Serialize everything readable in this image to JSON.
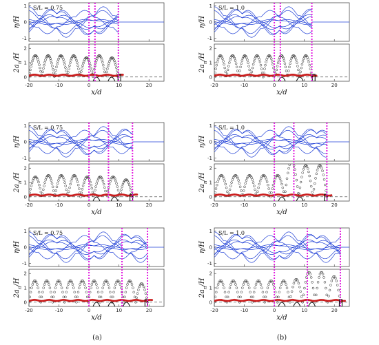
{
  "figure": {
    "captions": [
      "(a)",
      "(b)"
    ],
    "x_axis_label": "x/d",
    "top_y_label": "η/H",
    "bottom_y_label": "2a",
    "bottom_y_label_sub": "n",
    "bottom_y_label_tail": "/H"
  },
  "chart_data": [
    {
      "type": "line",
      "column": "a",
      "row": 1,
      "ratio_label": "S/L = 0.75",
      "x_ticks": [
        -20,
        -10,
        0,
        10,
        20
      ],
      "xlim": [
        -20,
        25
      ],
      "top": {
        "ylim": [
          -1.2,
          1.2
        ],
        "y_ticks": [
          1,
          0,
          -1
        ],
        "wave_end_x": 9.8
      },
      "bottom": {
        "ylim": [
          -0.3,
          2.3
        ],
        "y_ticks": [
          2,
          1,
          0
        ],
        "envelope_black": [
          1.5,
          1.5,
          1.5,
          1.5,
          1.35,
          1.5,
          1.35
        ],
        "envelope_red": 0.12,
        "reference_y": 0
      },
      "dashed_lines_x": [
        0,
        2.0,
        9.8
      ],
      "structures_x": [
        0,
        5,
        10
      ]
    },
    {
      "type": "line",
      "column": "b",
      "row": 1,
      "ratio_label": "S/L = 1.0",
      "x_ticks": [
        -20,
        -10,
        0,
        10,
        20
      ],
      "xlim": [
        -20,
        25
      ],
      "top": {
        "ylim": [
          -1.2,
          1.2
        ],
        "y_ticks": [
          1,
          0,
          -1
        ],
        "wave_end_x": 12.5
      },
      "bottom": {
        "ylim": [
          -0.3,
          2.3
        ],
        "y_ticks": [
          2,
          1,
          0
        ],
        "envelope_black": [
          1.5,
          1.5,
          1.5,
          1.5,
          1.5,
          1.5,
          1.5,
          1.5
        ],
        "envelope_red": 0.12,
        "reference_y": 0
      },
      "dashed_lines_x": [
        0,
        2.0,
        12.5
      ],
      "structures_x": [
        0,
        6,
        13
      ]
    },
    {
      "type": "line",
      "column": "a",
      "row": 2,
      "ratio_label": "S/L = 0.75",
      "x_ticks": [
        -20,
        -10,
        0,
        10,
        20
      ],
      "xlim": [
        -20,
        25
      ],
      "top": {
        "ylim": [
          -1.2,
          1.2
        ],
        "y_ticks": [
          1,
          0,
          -1
        ],
        "wave_end_x": 14.5
      },
      "bottom": {
        "ylim": [
          -0.3,
          2.3
        ],
        "y_ticks": [
          2,
          1,
          0
        ],
        "envelope_black": [
          1.4,
          1.5,
          1.5,
          1.5,
          1.4,
          1.4,
          1.4,
          1.2
        ],
        "envelope_red": 0.12,
        "reference_y": 0
      },
      "dashed_lines_x": [
        0,
        6.5,
        14.5
      ],
      "structures_x": [
        0,
        6,
        14
      ]
    },
    {
      "type": "line",
      "column": "b",
      "row": 2,
      "ratio_label": "S/L = 1.0",
      "x_ticks": [
        -20,
        -10,
        0,
        10,
        20
      ],
      "xlim": [
        -20,
        25
      ],
      "top": {
        "ylim": [
          -1.2,
          1.2
        ],
        "y_ticks": [
          1,
          0,
          -1
        ],
        "wave_end_x": 17.5
      },
      "bottom": {
        "ylim": [
          -0.3,
          2.3
        ],
        "y_ticks": [
          2,
          1,
          0
        ],
        "envelope_black": [
          1.5,
          1.5,
          1.5,
          1.5,
          1.5,
          2.5,
          2.2,
          2.2
        ],
        "envelope_red": 0.12,
        "reference_y": 0
      },
      "dashed_lines_x": [
        0,
        6.5,
        17.5
      ],
      "structures_x": [
        0,
        6,
        17
      ]
    },
    {
      "type": "line",
      "column": "a",
      "row": 3,
      "ratio_label": "S/L = 0.75",
      "x_ticks": [
        -20,
        -10,
        0,
        10,
        20
      ],
      "xlim": [
        -20,
        25
      ],
      "top": {
        "ylim": [
          -1.2,
          1.2
        ],
        "y_ticks": [
          1,
          0,
          -1
        ],
        "wave_end_x": 19.5
      },
      "bottom": {
        "ylim": [
          -0.3,
          2.3
        ],
        "y_ticks": [
          2,
          1,
          0
        ],
        "envelope_black": [
          1.5,
          1.5,
          1.5,
          1.5,
          1.5,
          1.5,
          1.5,
          1.5,
          1.5,
          1.3
        ],
        "envelope_red": 0.12,
        "reference_y": 0
      },
      "dashed_lines_x": [
        0,
        11,
        19.5
      ],
      "structures_x": [
        0,
        5,
        10,
        19
      ]
    },
    {
      "type": "line",
      "column": "b",
      "row": 3,
      "ratio_label": "S/L = 1.0",
      "x_ticks": [
        -20,
        -10,
        0,
        10,
        20
      ],
      "xlim": [
        -20,
        25
      ],
      "top": {
        "ylim": [
          -1.2,
          1.2
        ],
        "y_ticks": [
          1,
          0,
          -1
        ],
        "wave_end_x": 22
      },
      "bottom": {
        "ylim": [
          -0.3,
          2.3
        ],
        "y_ticks": [
          2,
          1,
          0
        ],
        "envelope_black": [
          1.5,
          1.5,
          1.5,
          1.5,
          1.5,
          1.5,
          1.6,
          2.1,
          2.1,
          1.8
        ],
        "envelope_red": 0.12,
        "reference_y": 0
      },
      "dashed_lines_x": [
        0,
        11,
        22
      ],
      "structures_x": [
        0,
        5,
        10,
        22
      ]
    }
  ]
}
